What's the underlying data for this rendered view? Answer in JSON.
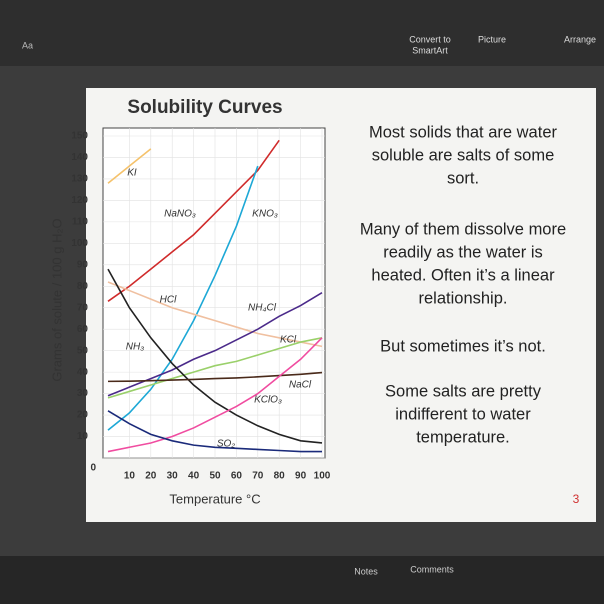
{
  "toolbar": {
    "convert": [
      "Convert to",
      "SmartArt"
    ],
    "picture": "Picture",
    "arrange": "Arrange",
    "font_size": "Aa"
  },
  "status_bar": {
    "notes": "Notes",
    "comments": "Comments"
  },
  "slide": {
    "number": "3",
    "paragraphs": [
      [
        "Most solids that are water",
        "soluble are salts of some",
        "sort."
      ],
      [
        "Many of them dissolve more",
        "readily as the water is",
        "heated. Often it’s a linear",
        "relationship."
      ],
      [
        "But sometimes it’s not."
      ],
      [
        "Some salts are pretty",
        "indifferent to water",
        "temperature."
      ]
    ]
  },
  "chart_data": {
    "type": "line",
    "title": "Solubility Curves",
    "x_label": "Temperature °C",
    "y_label": "Grams of solute / 100 g H₂O",
    "x": [
      0,
      10,
      20,
      30,
      40,
      50,
      60,
      70,
      80,
      90,
      100
    ],
    "xlim": [
      0,
      100
    ],
    "ylim": [
      0,
      150
    ],
    "xticks": [
      10,
      20,
      30,
      40,
      50,
      60,
      70,
      80,
      90,
      100
    ],
    "yticks": [
      0,
      10,
      20,
      30,
      40,
      50,
      60,
      70,
      80,
      90,
      100,
      110,
      120,
      130,
      140,
      150
    ],
    "grid": true,
    "series": [
      {
        "name": "KI",
        "color": "#f5c26b",
        "values": [
          128,
          136,
          144,
          null,
          null,
          null,
          null,
          null,
          null,
          null,
          null
        ]
      },
      {
        "name": "NaNO₃",
        "color": "#d02b2b",
        "values": [
          73,
          80,
          88,
          96,
          104,
          114,
          124,
          134,
          148,
          null,
          null
        ]
      },
      {
        "name": "KNO₃",
        "color": "#1da8d6",
        "values": [
          13,
          21,
          32,
          46,
          64,
          85,
          108,
          136,
          null,
          null,
          null
        ]
      },
      {
        "name": "HCl",
        "color": "#f0c0a0",
        "values": [
          82,
          78,
          74,
          70,
          67,
          64,
          61,
          58,
          56,
          54,
          52
        ]
      },
      {
        "name": "NH₄Cl",
        "color": "#4b2a8a",
        "values": [
          29,
          33,
          37,
          41,
          46,
          50,
          55,
          60,
          66,
          71,
          77
        ]
      },
      {
        "name": "KCl",
        "color": "#9ad06a",
        "values": [
          28,
          31,
          34,
          37,
          40,
          43,
          45,
          48,
          51,
          54,
          56
        ]
      },
      {
        "name": "NH₃",
        "color": "#222222",
        "values": [
          88,
          70,
          56,
          44,
          34,
          26,
          20,
          15,
          11,
          8,
          7
        ]
      },
      {
        "name": "NaCl",
        "color": "#4a2a1a",
        "values": [
          35.7,
          35.8,
          36,
          36.3,
          36.6,
          37,
          37.3,
          37.8,
          38.4,
          39,
          39.8
        ]
      },
      {
        "name": "KClO₃",
        "color": "#f04ca0",
        "values": [
          3,
          5,
          7,
          10,
          14,
          19,
          24,
          30,
          38,
          46,
          56
        ]
      },
      {
        "name": "SO₂",
        "color": "#1a2a7a",
        "values": [
          22,
          16,
          11,
          8,
          6,
          5,
          4.5,
          4,
          3.5,
          3,
          3
        ]
      }
    ]
  }
}
